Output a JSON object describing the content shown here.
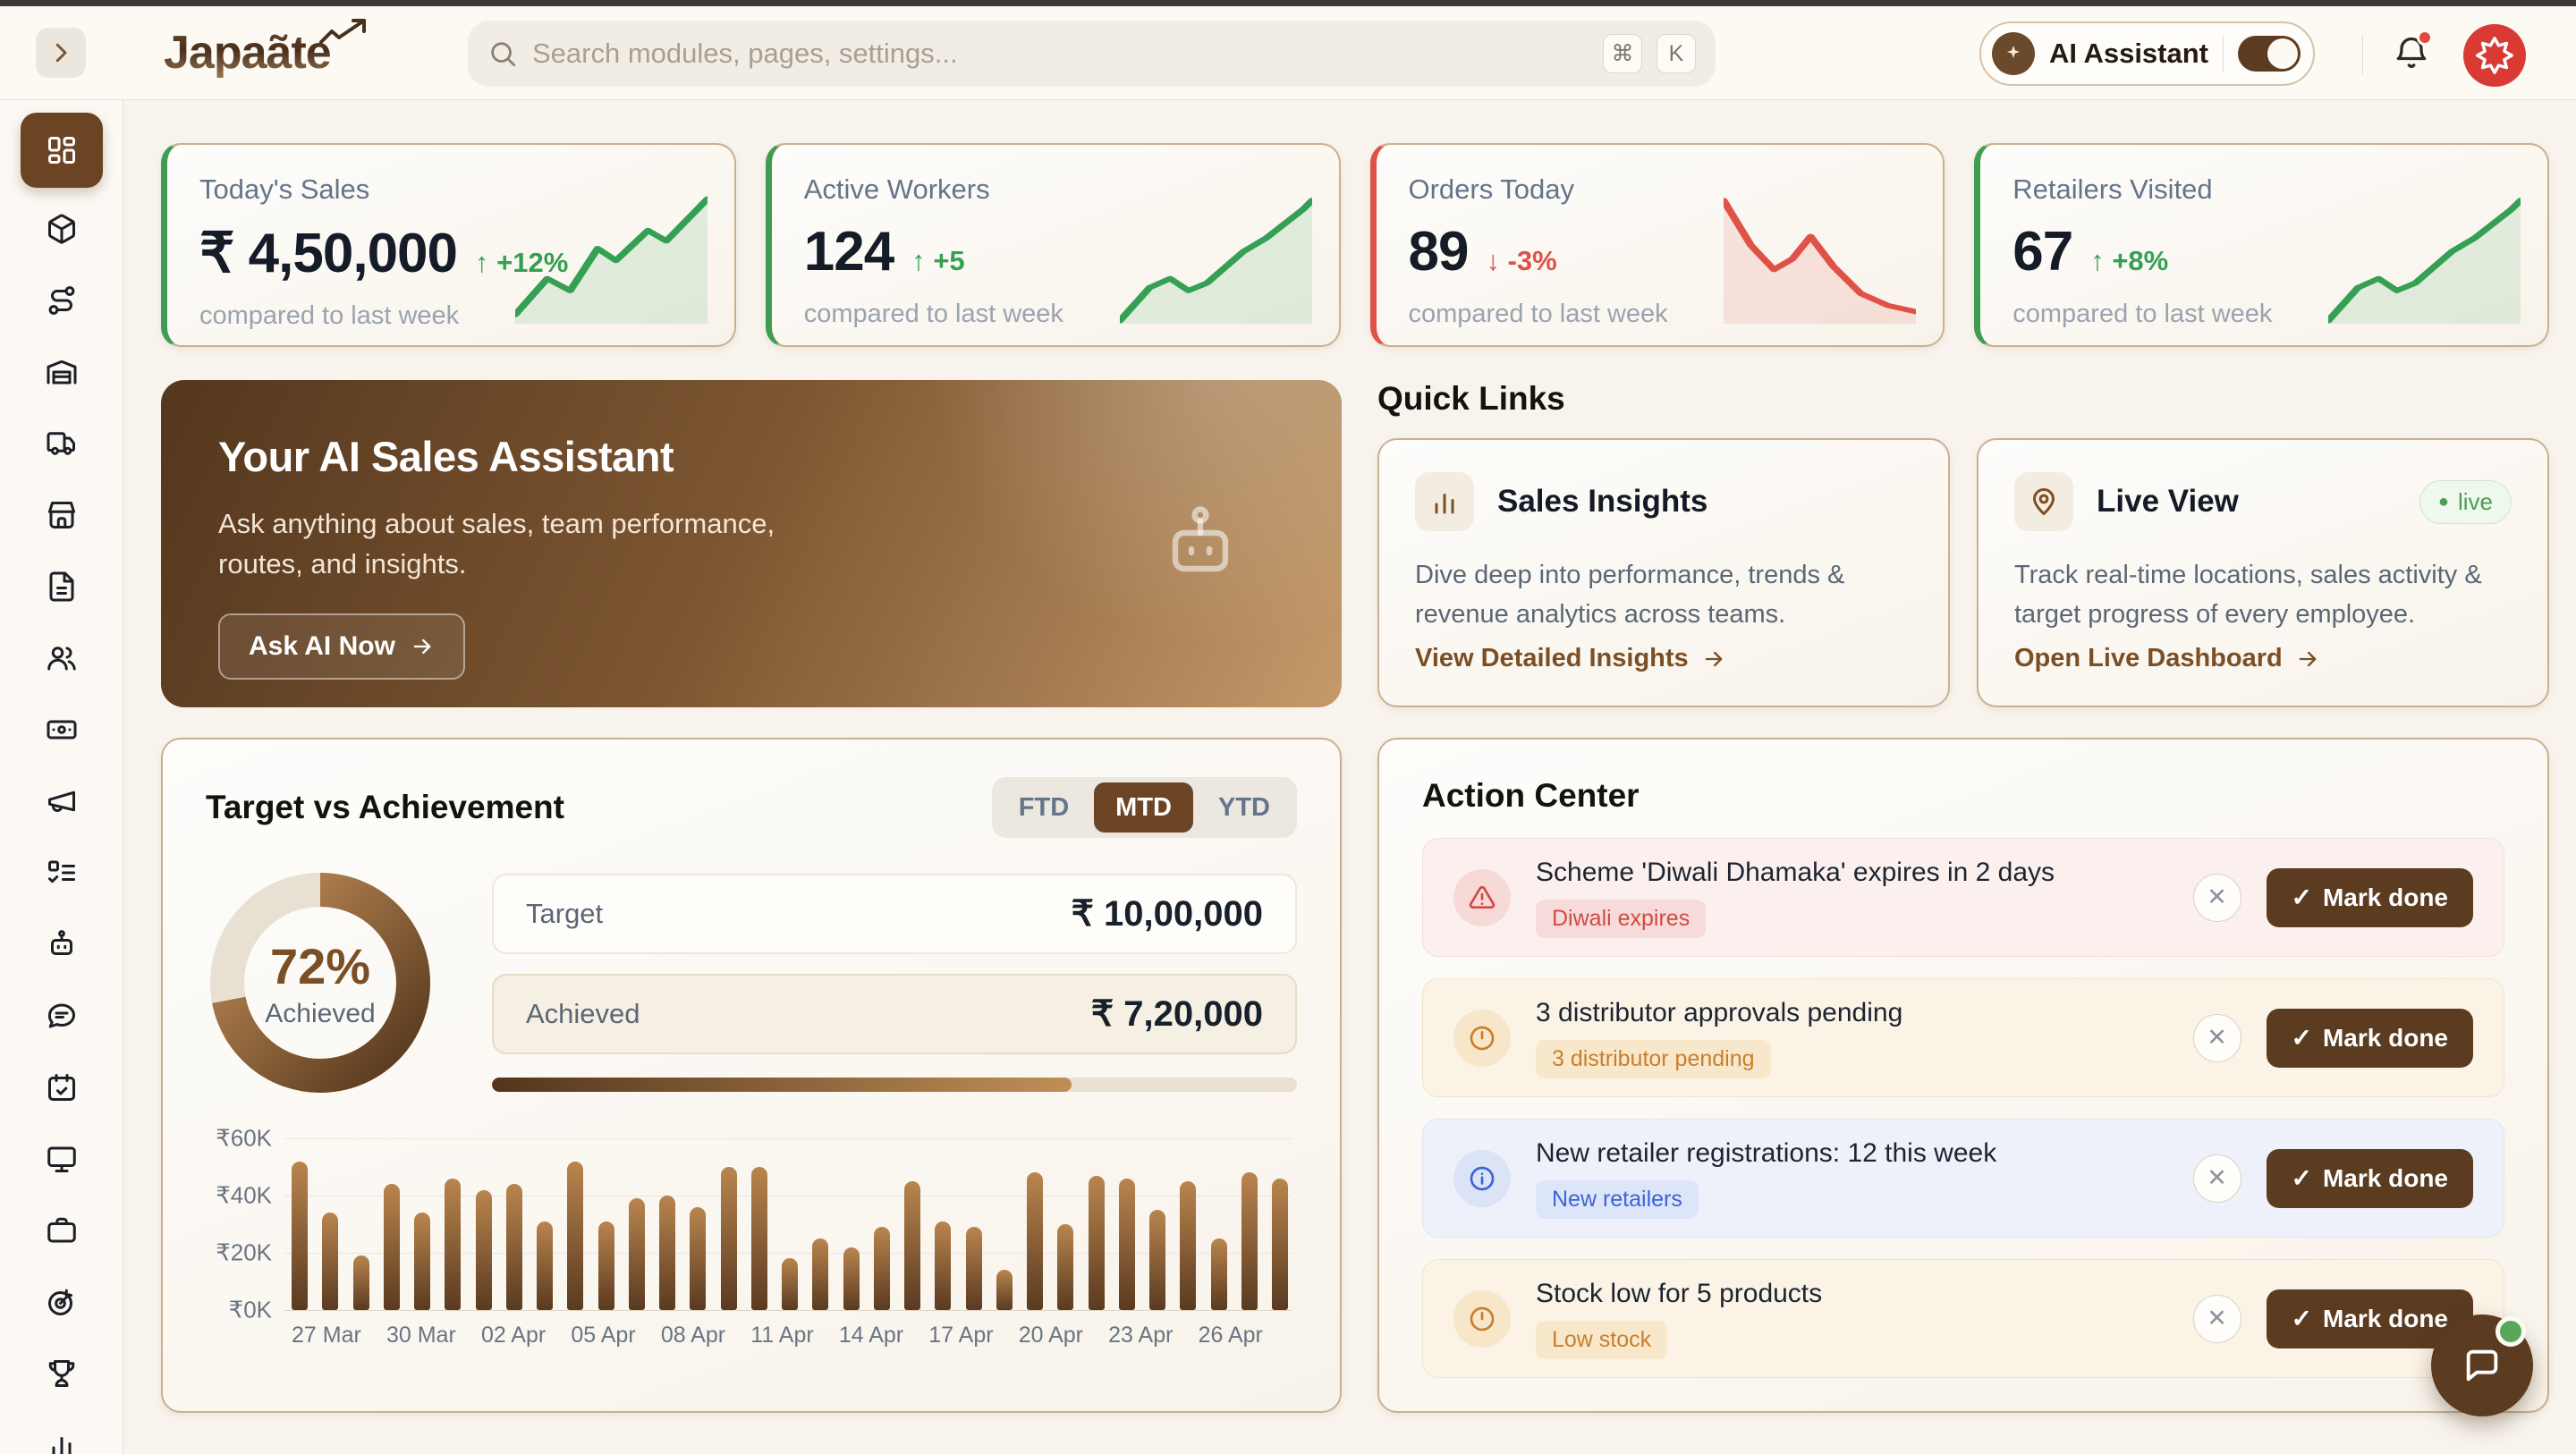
{
  "brand": {
    "name": "Japaãte"
  },
  "header": {
    "search": {
      "placeholder": "Search modules, pages, settings...",
      "keys": [
        "⌘",
        "K"
      ]
    },
    "ai_assistant": {
      "label": "AI Assistant",
      "enabled": true
    }
  },
  "glyphs": {
    "arrow_right": "→",
    "check": "✓",
    "close": "✕",
    "live_dot": "●",
    "up_arrow": "↑",
    "down_arrow": "↓"
  },
  "colors": {
    "primary_brown": "#5b3c21",
    "accent_tan": "#c9b18f",
    "green": "#35a053",
    "red": "#e05147",
    "cream_bg": "#f8f3ec",
    "avatar_red": "#d93a34"
  },
  "sidebar": {
    "items": [
      {
        "icon": "layout-dashboard",
        "active": true
      },
      {
        "icon": "package",
        "active": false
      },
      {
        "icon": "route",
        "active": false
      },
      {
        "icon": "warehouse",
        "active": false
      },
      {
        "icon": "truck",
        "active": false
      },
      {
        "icon": "store",
        "active": false
      },
      {
        "icon": "file-text",
        "active": false
      },
      {
        "icon": "users",
        "active": false
      },
      {
        "icon": "banknote",
        "active": false
      },
      {
        "icon": "megaphone",
        "active": false
      },
      {
        "icon": "list-todo",
        "active": false
      },
      {
        "icon": "bot",
        "active": false
      },
      {
        "icon": "message-chat",
        "active": false
      },
      {
        "icon": "calendar-check",
        "active": false
      },
      {
        "icon": "monitor",
        "active": false
      },
      {
        "icon": "briefcase",
        "active": false
      },
      {
        "icon": "goal-target",
        "active": false
      },
      {
        "icon": "trophy",
        "active": false
      },
      {
        "icon": "bar-chart",
        "active": false
      }
    ]
  },
  "kpis": [
    {
      "title": "Today's Sales",
      "value": "₹ 4,50,000",
      "delta": "+12%",
      "direction": "up",
      "compare": "compared to last week",
      "spark": "jagged-up"
    },
    {
      "title": "Active Workers",
      "value": "124",
      "delta": "+5",
      "direction": "up",
      "compare": "compared to last week",
      "spark": "smooth-up"
    },
    {
      "title": "Orders Today",
      "value": "89",
      "delta": "-3%",
      "direction": "down",
      "compare": "compared to last week",
      "spark": "down"
    },
    {
      "title": "Retailers Visited",
      "value": "67",
      "delta": "+8%",
      "direction": "up",
      "compare": "compared to last week",
      "spark": "smooth-up"
    }
  ],
  "ai_banner": {
    "title": "Your AI Sales Assistant",
    "body": "Ask anything about sales, team performance, routes, and insights.",
    "cta": "Ask AI Now"
  },
  "quick_links": {
    "heading": "Quick Links",
    "cards": [
      {
        "icon": "bar-chart",
        "title": "Sales Insights",
        "badge": "",
        "body": "Dive deep into performance, trends & revenue analytics across teams.",
        "link": "View Detailed Insights"
      },
      {
        "icon": "map-pin",
        "title": "Live View",
        "badge": "live",
        "body": "Track real-time locations, sales activity & target progress of every employee.",
        "link": "Open Live Dashboard"
      }
    ]
  },
  "target_section": {
    "title": "Target vs Achievement",
    "tabs": [
      "FTD",
      "MTD",
      "YTD"
    ],
    "active_tab_index": 1,
    "donut": {
      "percent": 72,
      "percent_label": "72%",
      "sub_label": "Achieved"
    },
    "rows": {
      "target_label": "Target",
      "target_value": "₹ 10,00,000",
      "achieved_label": "Achieved",
      "achieved_value": "₹ 7,20,000"
    },
    "progress_percent": 72
  },
  "chart_data": {
    "type": "bar",
    "title": "Target vs Achievement daily sales",
    "x_labels": [
      "27 Mar",
      "30 Mar",
      "02 Apr",
      "05 Apr",
      "08 Apr",
      "11 Apr",
      "14 Apr",
      "17 Apr",
      "20 Apr",
      "23 Apr",
      "26 Apr"
    ],
    "x_tick_every": 3,
    "values": [
      52,
      34,
      19,
      44,
      34,
      46,
      42,
      44,
      31,
      52,
      31,
      39,
      40,
      36,
      50,
      50,
      18,
      25,
      22,
      29,
      45,
      31,
      29,
      14,
      48,
      30,
      47,
      46,
      35,
      45,
      25,
      48,
      46
    ],
    "unit": "₹K",
    "y_ticks": [
      "₹0K",
      "₹20K",
      "₹40K",
      "₹60K"
    ],
    "ylim": [
      0,
      60
    ],
    "grid": true,
    "legend": "none"
  },
  "action_center": {
    "title": "Action Center",
    "mark_done_label": "Mark done",
    "items": [
      {
        "title": "Scheme 'Diwali Dhamaka' expires in 2 days",
        "badge": "Diwali expires",
        "severity": "danger",
        "icon": "alert-triangle"
      },
      {
        "title": "3 distributor approvals pending",
        "badge": "3 distributor pending",
        "severity": "warning",
        "icon": "clock"
      },
      {
        "title": "New retailer registrations: 12 this week",
        "badge": "New retailers",
        "severity": "info",
        "icon": "info"
      },
      {
        "title": "Stock low for 5 products",
        "badge": "Low stock",
        "severity": "warning",
        "icon": "clock"
      }
    ]
  }
}
